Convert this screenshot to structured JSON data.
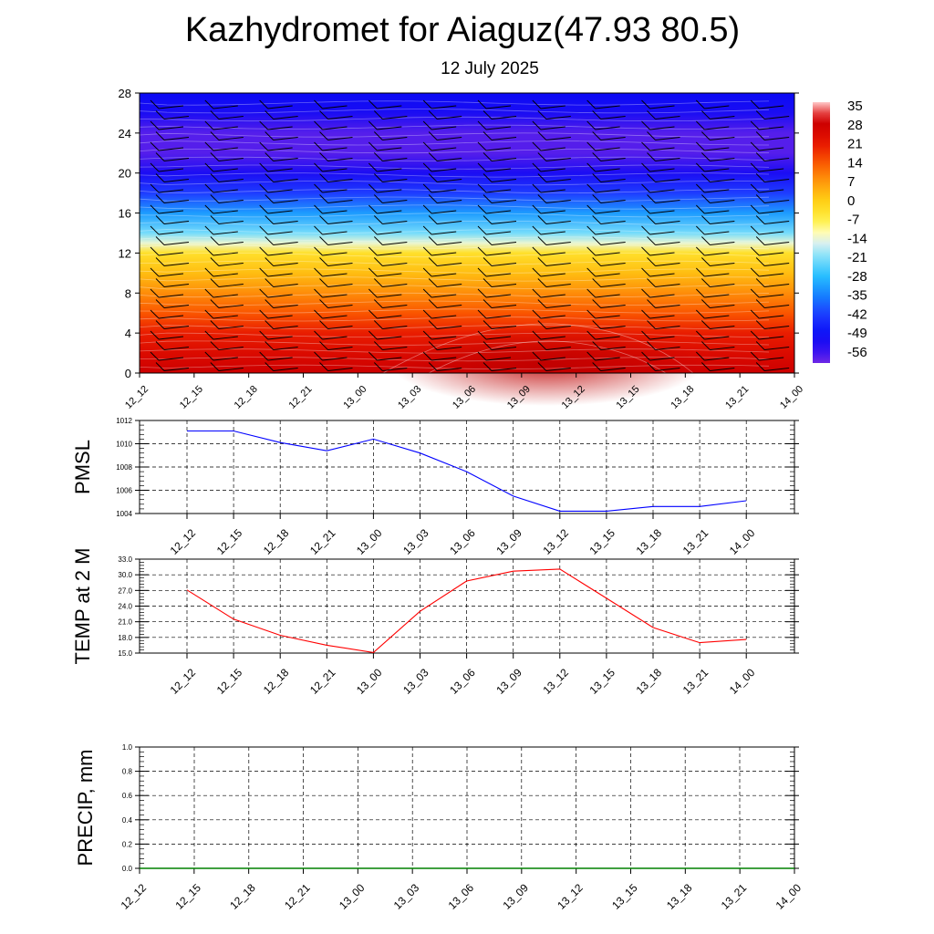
{
  "title": "Kazhydromet for Aiaguz(47.93 80.5)",
  "subtitle": "12 July 2025",
  "colors": {
    "pmsl_line": "#0000ff",
    "temp_line": "#ff0000",
    "precip_line": "#008000",
    "grid": "#000000"
  },
  "time_labels": [
    "12_12",
    "12_15",
    "12_18",
    "12_21",
    "13_00",
    "13_03",
    "13_06",
    "13_09",
    "13_12",
    "13_15",
    "13_18",
    "13_21",
    "14_00"
  ],
  "chart_data": [
    {
      "type": "heatmap",
      "title": "Kazhydromet for Aiaguz(47.93 80.5)",
      "subtitle": "12 July 2025",
      "x": [
        "12_12",
        "12_15",
        "12_18",
        "12_21",
        "13_00",
        "13_03",
        "13_06",
        "13_09",
        "13_12",
        "13_15",
        "13_18",
        "13_21",
        "14_00"
      ],
      "ylim": [
        0,
        28
      ],
      "yticks": [
        0,
        4,
        8,
        12,
        16,
        20,
        24,
        28
      ],
      "colorbar_labels": [
        "35",
        "28",
        "21",
        "14",
        "7",
        "0",
        "-7",
        "-14",
        "-21",
        "-28",
        "-35",
        "-42",
        "-49",
        "-56"
      ],
      "overlay": "wind barbs",
      "profile": [
        {
          "z": 0,
          "t": 28
        },
        {
          "z": 2,
          "t": 24
        },
        {
          "z": 4,
          "t": 20
        },
        {
          "z": 6,
          "t": 14
        },
        {
          "z": 8,
          "t": 8
        },
        {
          "z": 10,
          "t": 2
        },
        {
          "z": 12,
          "t": -4
        },
        {
          "z": 13,
          "t": -14
        },
        {
          "z": 14,
          "t": -22
        },
        {
          "z": 16,
          "t": -32
        },
        {
          "z": 18,
          "t": -42
        },
        {
          "z": 20,
          "t": -52
        },
        {
          "z": 22,
          "t": -58
        },
        {
          "z": 24,
          "t": -58
        },
        {
          "z": 26,
          "t": -52
        },
        {
          "z": 28,
          "t": -50
        }
      ]
    },
    {
      "type": "line",
      "ylabel": "PMSL",
      "x": [
        "12_12",
        "12_15",
        "12_18",
        "12_21",
        "13_00",
        "13_03",
        "13_06",
        "13_09",
        "13_12",
        "13_15",
        "13_18",
        "13_21",
        "14_00"
      ],
      "ylim": [
        1004,
        1012
      ],
      "yticks": [
        "1004",
        "1006",
        "1008",
        "1010",
        "1012"
      ],
      "series": [
        {
          "values": [
            1011.1,
            1011.1,
            1010.1,
            1009.4,
            1010.4,
            1009.2,
            1007.6,
            1005.5,
            1004.2,
            1004.2,
            1004.6,
            1004.6,
            1005.1
          ]
        }
      ]
    },
    {
      "type": "line",
      "ylabel": "TEMP at 2 M",
      "x": [
        "12_12",
        "12_15",
        "12_18",
        "12_21",
        "13_00",
        "13_03",
        "13_06",
        "13_09",
        "13_12",
        "13_15",
        "13_18",
        "13_21",
        "14_00"
      ],
      "ylim": [
        15,
        33
      ],
      "yticks": [
        "15.0",
        "18.0",
        "21.0",
        "24.0",
        "27.0",
        "30.0",
        "33.0"
      ],
      "series": [
        {
          "values": [
            27.1,
            21.5,
            18.4,
            16.5,
            15.1,
            23.0,
            28.8,
            30.7,
            31.1,
            25.5,
            19.9,
            17.0,
            17.6
          ]
        }
      ]
    },
    {
      "type": "line",
      "ylabel": "PRECIP, mm",
      "x": [
        "12_12",
        "12_15",
        "12_18",
        "12_21",
        "13_00",
        "13_03",
        "13_06",
        "13_09",
        "13_12",
        "13_15",
        "13_18",
        "13_21",
        "14_00"
      ],
      "ylim": [
        0,
        1
      ],
      "yticks": [
        "0.0",
        "0.2",
        "0.4",
        "0.6",
        "0.8",
        "1.0"
      ],
      "series": [
        {
          "values": [
            0,
            0,
            0,
            0,
            0,
            0,
            0,
            0,
            0,
            0,
            0,
            0,
            0
          ]
        }
      ]
    }
  ]
}
